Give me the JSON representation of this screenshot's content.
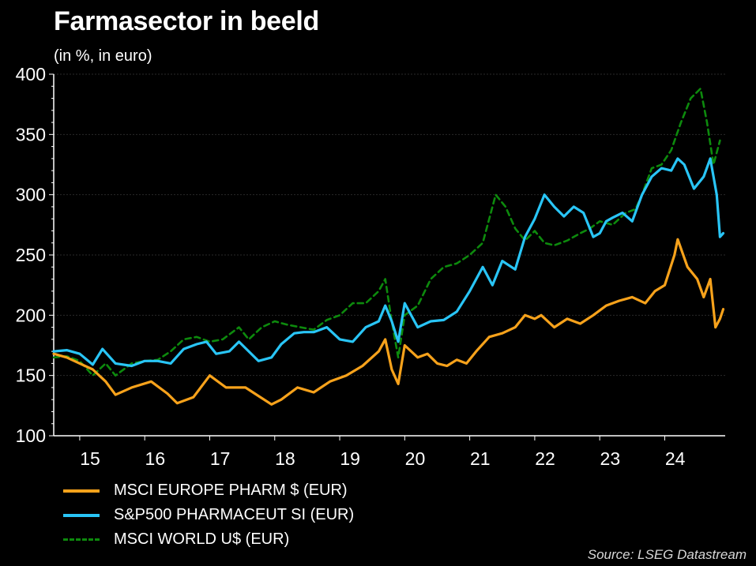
{
  "colors": {
    "background": "#000000",
    "grid": "#2a2a2a",
    "axis": "#ffffff",
    "europe": "#f7a21b",
    "sp500": "#29c5f6",
    "world": "#0d8a0d"
  },
  "header": {
    "title": "Farmasector in beeld",
    "subtitle": "(in %, in euro)"
  },
  "footer": {
    "source": "Source: LSEG Datastream"
  },
  "chart_data": {
    "type": "line",
    "title": "Farmasector in beeld",
    "subtitle": "(in %, in euro)",
    "ylim": [
      100,
      400
    ],
    "xlim": [
      2014.6,
      2024.93
    ],
    "y_ticks": [
      100,
      150,
      200,
      250,
      300,
      350,
      400
    ],
    "x_tick_labels": [
      {
        "label": "15",
        "x": 2015.0
      },
      {
        "label": "16",
        "x": 2016.0
      },
      {
        "label": "17",
        "x": 2017.0
      },
      {
        "label": "18",
        "x": 2018.0
      },
      {
        "label": "19",
        "x": 2019.0
      },
      {
        "label": "20",
        "x": 2020.0
      },
      {
        "label": "21",
        "x": 2021.0
      },
      {
        "label": "22",
        "x": 2022.0
      },
      {
        "label": "23",
        "x": 2023.0
      },
      {
        "label": "24",
        "x": 2024.0
      }
    ],
    "grid": true,
    "legend_position": "bottom-left",
    "series": [
      {
        "name": "MSCI EUROPE PHARM $ (EUR)",
        "style": "solid",
        "points": [
          [
            2014.6,
            168
          ],
          [
            2014.8,
            165
          ],
          [
            2015.0,
            160
          ],
          [
            2015.2,
            155
          ],
          [
            2015.4,
            145
          ],
          [
            2015.55,
            134
          ],
          [
            2015.8,
            140
          ],
          [
            2016.1,
            145
          ],
          [
            2016.35,
            135
          ],
          [
            2016.5,
            127
          ],
          [
            2016.75,
            132
          ],
          [
            2017.0,
            150
          ],
          [
            2017.25,
            140
          ],
          [
            2017.55,
            140
          ],
          [
            2017.75,
            133
          ],
          [
            2017.95,
            126
          ],
          [
            2018.1,
            130
          ],
          [
            2018.35,
            140
          ],
          [
            2018.6,
            136
          ],
          [
            2018.85,
            145
          ],
          [
            2019.1,
            150
          ],
          [
            2019.35,
            158
          ],
          [
            2019.6,
            170
          ],
          [
            2019.7,
            180
          ],
          [
            2019.8,
            155
          ],
          [
            2019.9,
            143
          ],
          [
            2020.0,
            175
          ],
          [
            2020.2,
            165
          ],
          [
            2020.35,
            168
          ],
          [
            2020.5,
            160
          ],
          [
            2020.65,
            158
          ],
          [
            2020.8,
            163
          ],
          [
            2020.95,
            160
          ],
          [
            2021.1,
            170
          ],
          [
            2021.3,
            182
          ],
          [
            2021.5,
            185
          ],
          [
            2021.7,
            190
          ],
          [
            2021.85,
            200
          ],
          [
            2022.0,
            197
          ],
          [
            2022.1,
            200
          ],
          [
            2022.3,
            190
          ],
          [
            2022.5,
            197
          ],
          [
            2022.7,
            193
          ],
          [
            2022.9,
            200
          ],
          [
            2023.1,
            208
          ],
          [
            2023.3,
            212
          ],
          [
            2023.5,
            215
          ],
          [
            2023.7,
            210
          ],
          [
            2023.85,
            220
          ],
          [
            2024.0,
            225
          ],
          [
            2024.15,
            250
          ],
          [
            2024.2,
            263
          ],
          [
            2024.35,
            240
          ],
          [
            2024.5,
            230
          ],
          [
            2024.6,
            215
          ],
          [
            2024.7,
            230
          ],
          [
            2024.78,
            190
          ],
          [
            2024.85,
            197
          ],
          [
            2024.9,
            205
          ]
        ]
      },
      {
        "name": "S&P500 PHARMACEUT SI (EUR)",
        "style": "solid",
        "points": [
          [
            2014.6,
            170
          ],
          [
            2014.8,
            171
          ],
          [
            2015.0,
            168
          ],
          [
            2015.2,
            159
          ],
          [
            2015.35,
            172
          ],
          [
            2015.55,
            160
          ],
          [
            2015.8,
            158
          ],
          [
            2016.0,
            162
          ],
          [
            2016.2,
            162
          ],
          [
            2016.4,
            160
          ],
          [
            2016.6,
            172
          ],
          [
            2016.8,
            176
          ],
          [
            2016.95,
            178
          ],
          [
            2017.1,
            168
          ],
          [
            2017.3,
            170
          ],
          [
            2017.45,
            178
          ],
          [
            2017.6,
            170
          ],
          [
            2017.75,
            162
          ],
          [
            2017.95,
            165
          ],
          [
            2018.1,
            176
          ],
          [
            2018.3,
            185
          ],
          [
            2018.45,
            186
          ],
          [
            2018.6,
            186
          ],
          [
            2018.8,
            190
          ],
          [
            2019.0,
            180
          ],
          [
            2019.2,
            178
          ],
          [
            2019.4,
            190
          ],
          [
            2019.6,
            195
          ],
          [
            2019.7,
            208
          ],
          [
            2019.8,
            195
          ],
          [
            2019.9,
            178
          ],
          [
            2020.0,
            210
          ],
          [
            2020.2,
            190
          ],
          [
            2020.4,
            195
          ],
          [
            2020.6,
            196
          ],
          [
            2020.8,
            203
          ],
          [
            2021.0,
            220
          ],
          [
            2021.2,
            240
          ],
          [
            2021.35,
            225
          ],
          [
            2021.5,
            245
          ],
          [
            2021.7,
            238
          ],
          [
            2021.85,
            265
          ],
          [
            2022.0,
            280
          ],
          [
            2022.15,
            300
          ],
          [
            2022.3,
            290
          ],
          [
            2022.45,
            282
          ],
          [
            2022.6,
            290
          ],
          [
            2022.75,
            285
          ],
          [
            2022.9,
            265
          ],
          [
            2023.0,
            268
          ],
          [
            2023.1,
            278
          ],
          [
            2023.2,
            281
          ],
          [
            2023.35,
            285
          ],
          [
            2023.5,
            278
          ],
          [
            2023.65,
            300
          ],
          [
            2023.8,
            315
          ],
          [
            2023.95,
            322
          ],
          [
            2024.1,
            320
          ],
          [
            2024.2,
            330
          ],
          [
            2024.3,
            325
          ],
          [
            2024.45,
            305
          ],
          [
            2024.6,
            315
          ],
          [
            2024.7,
            330
          ],
          [
            2024.8,
            300
          ],
          [
            2024.85,
            265
          ],
          [
            2024.9,
            268
          ]
        ]
      },
      {
        "name": "MSCI WORLD U$ (EUR)",
        "style": "dashed",
        "points": [
          [
            2014.6,
            165
          ],
          [
            2014.8,
            166
          ],
          [
            2015.0,
            162
          ],
          [
            2015.2,
            150
          ],
          [
            2015.4,
            160
          ],
          [
            2015.55,
            150
          ],
          [
            2015.8,
            160
          ],
          [
            2016.0,
            162
          ],
          [
            2016.2,
            163
          ],
          [
            2016.4,
            170
          ],
          [
            2016.6,
            180
          ],
          [
            2016.8,
            182
          ],
          [
            2017.0,
            178
          ],
          [
            2017.2,
            180
          ],
          [
            2017.45,
            190
          ],
          [
            2017.6,
            180
          ],
          [
            2017.8,
            190
          ],
          [
            2018.0,
            195
          ],
          [
            2018.2,
            192
          ],
          [
            2018.4,
            190
          ],
          [
            2018.6,
            188
          ],
          [
            2018.8,
            196
          ],
          [
            2019.0,
            200
          ],
          [
            2019.2,
            210
          ],
          [
            2019.4,
            210
          ],
          [
            2019.6,
            220
          ],
          [
            2019.7,
            230
          ],
          [
            2019.8,
            195
          ],
          [
            2019.9,
            165
          ],
          [
            2020.0,
            200
          ],
          [
            2020.2,
            208
          ],
          [
            2020.4,
            230
          ],
          [
            2020.6,
            240
          ],
          [
            2020.8,
            243
          ],
          [
            2021.0,
            250
          ],
          [
            2021.2,
            260
          ],
          [
            2021.4,
            300
          ],
          [
            2021.55,
            290
          ],
          [
            2021.7,
            272
          ],
          [
            2021.85,
            262
          ],
          [
            2022.0,
            270
          ],
          [
            2022.15,
            260
          ],
          [
            2022.3,
            258
          ],
          [
            2022.5,
            262
          ],
          [
            2022.7,
            268
          ],
          [
            2022.85,
            272
          ],
          [
            2023.0,
            278
          ],
          [
            2023.2,
            275
          ],
          [
            2023.4,
            285
          ],
          [
            2023.55,
            288
          ],
          [
            2023.65,
            300
          ],
          [
            2023.8,
            322
          ],
          [
            2023.95,
            325
          ],
          [
            2024.1,
            337
          ],
          [
            2024.25,
            360
          ],
          [
            2024.4,
            380
          ],
          [
            2024.55,
            388
          ],
          [
            2024.65,
            360
          ],
          [
            2024.75,
            325
          ],
          [
            2024.85,
            345
          ]
        ]
      }
    ]
  }
}
